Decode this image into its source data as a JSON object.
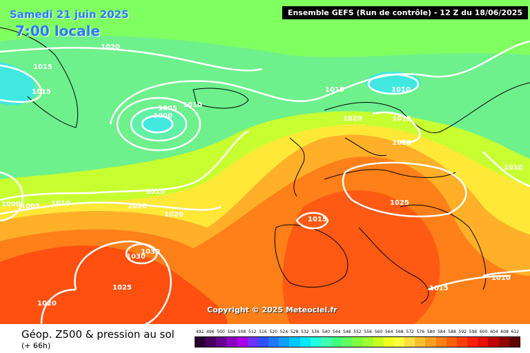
{
  "header": {
    "date": "Samedi 21 juin 2025",
    "time": "7:00 locale",
    "run_info": "Ensemble GEFS  (Run de contrôle)  -  12 Z du 18/06/2025"
  },
  "copyright": "Copyright © 2025 Meteociel.fr",
  "footer": {
    "title": "Géop. Z500 & pression au sol",
    "forecast": "(+ 66h)"
  },
  "legend": {
    "values": [
      "492",
      "496",
      "500",
      "504",
      "508",
      "512",
      "516",
      "520",
      "524",
      "528",
      "532",
      "536",
      "540",
      "544",
      "548",
      "552",
      "556",
      "560",
      "564",
      "568",
      "572",
      "576",
      "580",
      "584",
      "588",
      "592",
      "596",
      "600",
      "604",
      "608",
      "612"
    ],
    "colors": [
      "#2a0033",
      "#480060",
      "#6a0090",
      "#8a00c0",
      "#a800e8",
      "#7030ff",
      "#3050ff",
      "#1e78ff",
      "#10a0ff",
      "#00c8ff",
      "#00e8ff",
      "#20ffe0",
      "#40ffb0",
      "#40ff80",
      "#60ff60",
      "#80ff40",
      "#a0ff30",
      "#c8ff20",
      "#f0ff20",
      "#ffff40",
      "#ffe040",
      "#ffc030",
      "#ffa020",
      "#ff8010",
      "#ff6000",
      "#ff4000",
      "#ff2000",
      "#e81000",
      "#c00000",
      "#900000",
      "#600000"
    ]
  },
  "isobars": [
    {
      "label": "1020"
    },
    {
      "label": "1015"
    },
    {
      "label": "1015"
    },
    {
      "label": "1005"
    },
    {
      "label": "1000"
    },
    {
      "label": "1010"
    },
    {
      "label": "1015"
    },
    {
      "label": "1010"
    },
    {
      "label": "1020"
    },
    {
      "label": "1015"
    },
    {
      "label": "1020"
    },
    {
      "label": "1010"
    },
    {
      "label": "1025"
    },
    {
      "label": "1015"
    },
    {
      "label": "1015"
    },
    {
      "label": "1000"
    },
    {
      "label": "1005"
    },
    {
      "label": "1010"
    },
    {
      "label": "1020"
    },
    {
      "label": "1020"
    },
    {
      "label": "1030"
    },
    {
      "label": "1030"
    },
    {
      "label": "1025"
    },
    {
      "label": "1020"
    },
    {
      "label": "1015"
    },
    {
      "label": "1010"
    }
  ]
}
